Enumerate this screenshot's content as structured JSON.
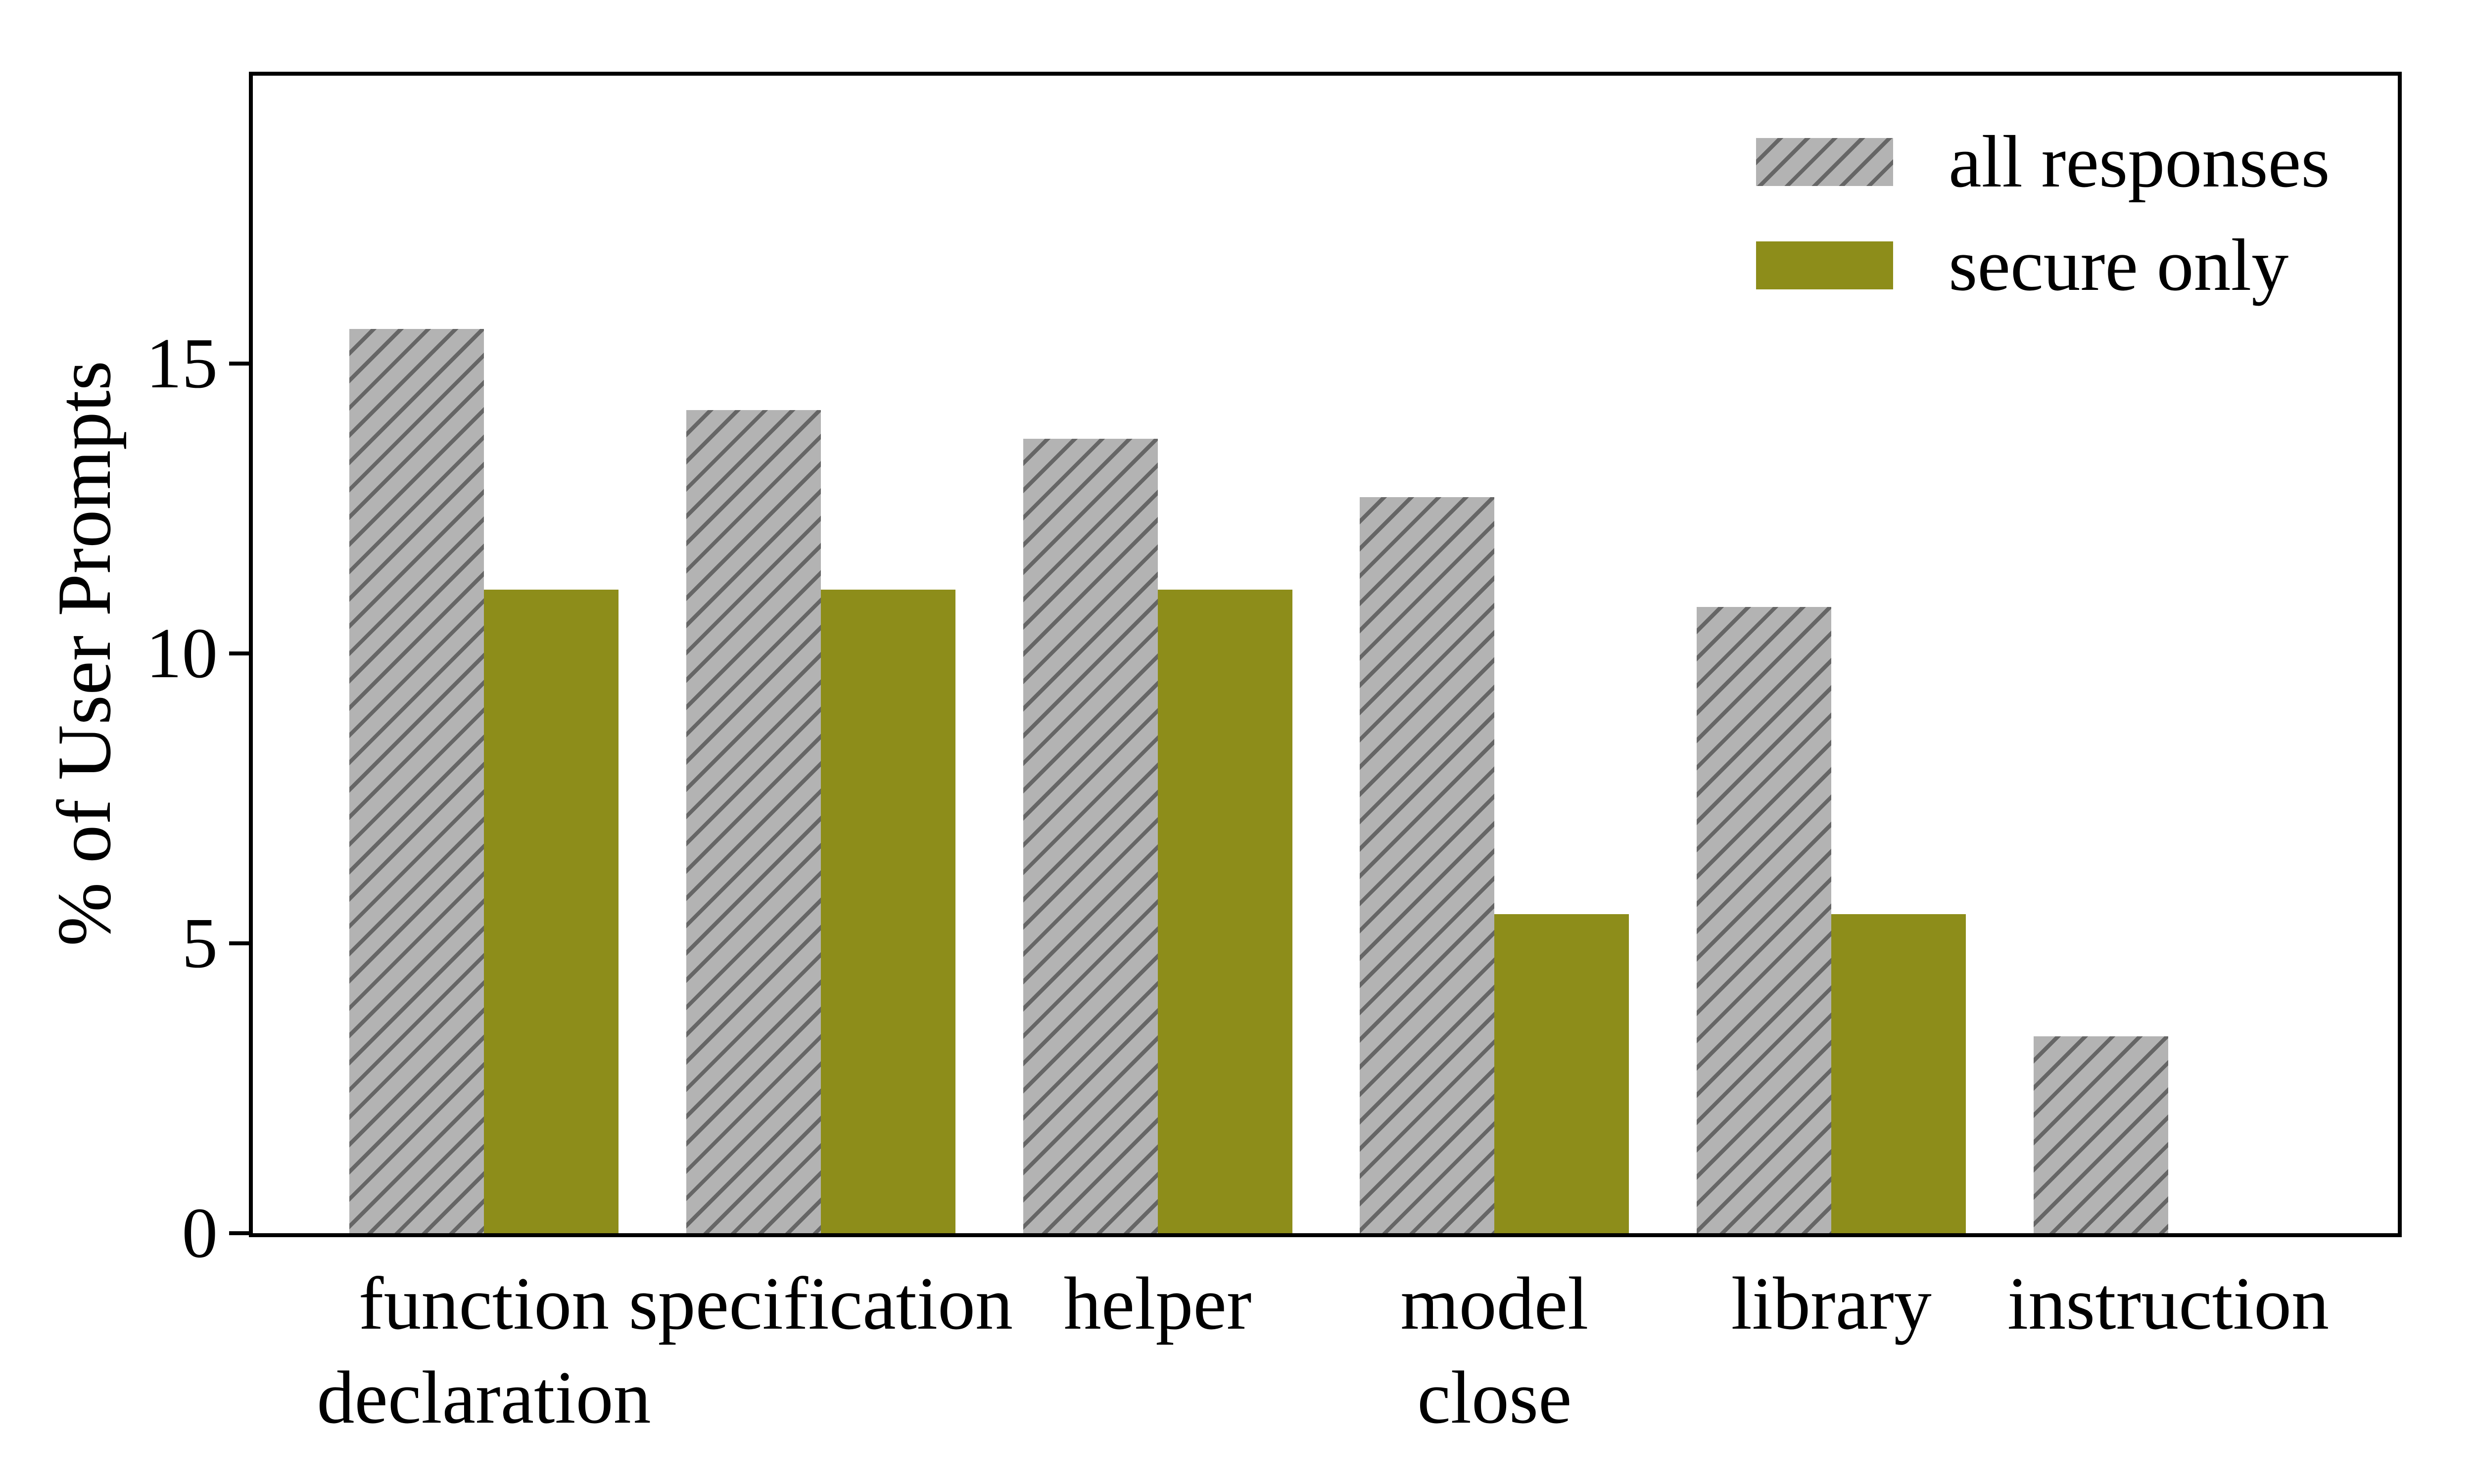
{
  "figure": {
    "background": "#ffffff",
    "axis_color": "#000000"
  },
  "chart_data": {
    "type": "bar",
    "title": "",
    "categories": [
      "function\ndeclaration",
      "specification",
      "helper",
      "model\nclose",
      "library",
      "instruction"
    ],
    "series": [
      {
        "name": "all responses",
        "color": "#b3b3b3",
        "hatch": "/",
        "hatch_color": "#666666",
        "values": [
          15.6,
          14.2,
          13.7,
          12.7,
          10.8,
          3.4
        ]
      },
      {
        "name": "secure only",
        "color": "#8d8d1a",
        "hatch": null,
        "hatch_color": null,
        "values": [
          11.1,
          11.1,
          11.1,
          5.5,
          5.5,
          0
        ]
      }
    ],
    "xlabel": "",
    "ylabel": "% of User Prompts",
    "yticks": [
      0,
      5,
      10,
      15
    ],
    "ylim": [
      0,
      20
    ],
    "grid": false,
    "legend_position": "upper right",
    "bar_orientation": "vertical"
  }
}
